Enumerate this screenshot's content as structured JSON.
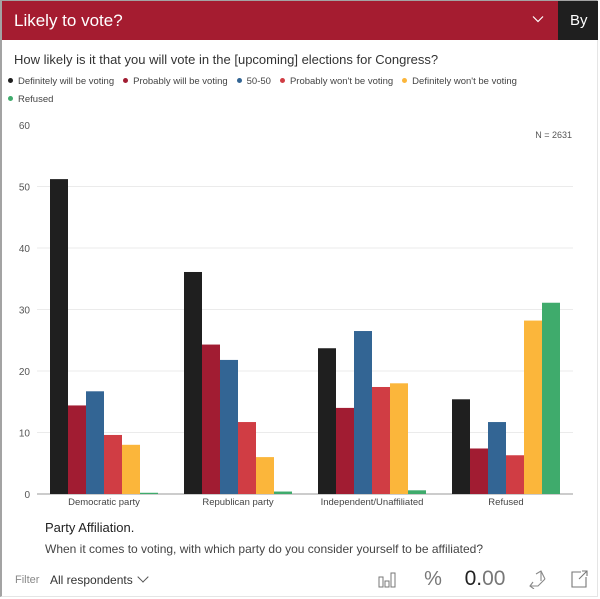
{
  "header": {
    "title": "Likely to vote?",
    "by_label": "By",
    "dropdown_icon": "chevron-down-icon"
  },
  "question": "How likely is it that you will vote in the [upcoming] elections for Congress?",
  "legend": [
    {
      "label": "Definitely will be voting",
      "color": "#1f1f1f"
    },
    {
      "label": "Probably will be voting",
      "color": "#a11c32"
    },
    {
      "label": "50-50",
      "color": "#336594"
    },
    {
      "label": "Probably won't be voting",
      "color": "#d03d44"
    },
    {
      "label": "Definitely won't be voting",
      "color": "#fbb63b"
    },
    {
      "label": "Refused",
      "color": "#3fab6c"
    }
  ],
  "n_label": "N = 2631",
  "chart_data": {
    "type": "bar",
    "title": "Likely to vote?",
    "xlabel": "Party Affiliation.",
    "ylabel": "",
    "categories": [
      "Democratic  party",
      "Republican  party",
      "Independent/Unaffiliated",
      "Refused"
    ],
    "series": [
      {
        "name": "Definitely will be voting",
        "color": "#1f1f1f",
        "values": [
          51.2,
          36.1,
          23.7,
          15.4
        ]
      },
      {
        "name": "Probably will be voting",
        "color": "#a11c32",
        "values": [
          14.4,
          24.3,
          14.0,
          7.4
        ]
      },
      {
        "name": "50-50",
        "color": "#336594",
        "values": [
          16.7,
          21.8,
          26.5,
          11.7
        ]
      },
      {
        "name": "Probably won't be voting",
        "color": "#d03d44",
        "values": [
          9.6,
          11.7,
          17.4,
          6.3
        ]
      },
      {
        "name": "Definitely won't be voting",
        "color": "#fbb63b",
        "values": [
          8.0,
          6.0,
          18.0,
          28.2
        ]
      },
      {
        "name": "Refused",
        "color": "#3fab6c",
        "values": [
          0.2,
          0.4,
          0.6,
          31.1
        ]
      }
    ],
    "ylim": [
      0,
      60
    ],
    "yticks": [
      "0",
      "10",
      "20",
      "30",
      "40",
      "50",
      "60"
    ],
    "grid": true,
    "legend_position": "top-left"
  },
  "x_axis": {
    "title": "Party Affiliation.",
    "subtitle": "When it comes to voting, with which party do you consider yourself to be affiliated?"
  },
  "footer": {
    "filter_label": "Filter",
    "filter_value": "All respondents",
    "percent_label": "%",
    "decimals_main": "0.",
    "decimals_light": "00",
    "icons": [
      "bar-chart-icon",
      "percent-icon",
      "decimals-icon",
      "swap-axes-icon",
      "expand-icon"
    ]
  }
}
